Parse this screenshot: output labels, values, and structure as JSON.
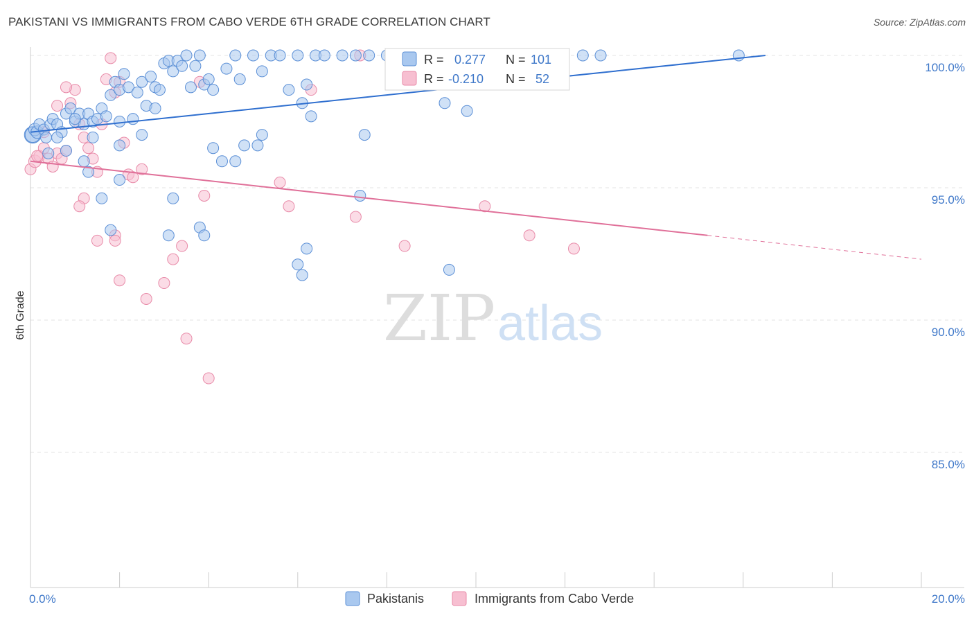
{
  "title": "PAKISTANI VS IMMIGRANTS FROM CABO VERDE 6TH GRADE CORRELATION CHART",
  "source": "Source: ZipAtlas.com",
  "watermark": {
    "zip": "ZIP",
    "atlas": "atlas"
  },
  "colors": {
    "blue_fill": "#a9c8ef",
    "blue_stroke": "#5b8fd6",
    "blue_line": "#2f6fcf",
    "pink_fill": "#f7bfd1",
    "pink_stroke": "#e88aa8",
    "pink_line": "#e07099",
    "tick_text": "#3f78c9",
    "grid": "#e3e3e3"
  },
  "stats": {
    "blue": {
      "r_label": "R =",
      "r_value": "0.277",
      "n_label": "N =",
      "n_value": "101"
    },
    "pink": {
      "r_label": "R =",
      "r_value": "-0.210",
      "n_label": "N =",
      "n_value": "52"
    }
  },
  "chart_data": {
    "type": "scatter",
    "title": "PAKISTANI VS IMMIGRANTS FROM CABO VERDE 6TH GRADE CORRELATION CHART",
    "xlabel": "",
    "ylabel": "6th Grade",
    "xlim": [
      0,
      20
    ],
    "ylim": [
      80.5,
      100.6
    ],
    "x_tick_labels": [
      {
        "value": 0,
        "label": "0.0%"
      },
      {
        "value": 20,
        "label": "20.0%"
      }
    ],
    "y_tick_labels": [
      {
        "value": 100,
        "label": "100.0%"
      },
      {
        "value": 95,
        "label": "95.0%"
      },
      {
        "value": 90,
        "label": "90.0%"
      },
      {
        "value": 85,
        "label": "85.0%"
      }
    ],
    "grid": true,
    "legend_position": "bottom-center",
    "series": [
      {
        "name": "Pakistanis",
        "color": "#5b8fd6",
        "trend": {
          "x": [
            0,
            16.5
          ],
          "y": [
            97.1,
            100.0
          ],
          "dashed_to": null
        },
        "points": [
          [
            0.05,
            97.0,
            12
          ],
          [
            0.05,
            97.0,
            11
          ],
          [
            0.1,
            97.2,
            9
          ],
          [
            0.15,
            97.1,
            9
          ],
          [
            0.2,
            97.4,
            8
          ],
          [
            0.3,
            97.2,
            8
          ],
          [
            0.35,
            96.9,
            8
          ],
          [
            0.45,
            97.4,
            8
          ],
          [
            0.5,
            97.6,
            8
          ],
          [
            0.6,
            97.4,
            8
          ],
          [
            0.7,
            97.1,
            8
          ],
          [
            0.8,
            97.8,
            8
          ],
          [
            0.9,
            98.0,
            8
          ],
          [
            1.0,
            97.5,
            8
          ],
          [
            1.1,
            97.8,
            8
          ],
          [
            1.2,
            97.4,
            8
          ],
          [
            1.3,
            97.8,
            8
          ],
          [
            1.4,
            97.5,
            8
          ],
          [
            1.5,
            97.6,
            8
          ],
          [
            1.6,
            98.0,
            8
          ],
          [
            1.7,
            97.7,
            8
          ],
          [
            1.8,
            98.5,
            8
          ],
          [
            1.9,
            99.0,
            8
          ],
          [
            2.0,
            98.7,
            8
          ],
          [
            2.1,
            99.3,
            8
          ],
          [
            2.2,
            98.8,
            8
          ],
          [
            2.3,
            97.6,
            8
          ],
          [
            2.4,
            98.6,
            8
          ],
          [
            2.5,
            99.0,
            8
          ],
          [
            2.6,
            98.1,
            8
          ],
          [
            2.7,
            99.2,
            8
          ],
          [
            2.8,
            98.8,
            8
          ],
          [
            2.9,
            98.7,
            8
          ],
          [
            3.0,
            99.7,
            8
          ],
          [
            3.1,
            99.8,
            8
          ],
          [
            3.2,
            99.4,
            8
          ],
          [
            3.3,
            99.8,
            8
          ],
          [
            3.4,
            99.6,
            8
          ],
          [
            3.5,
            100.0,
            8
          ],
          [
            3.6,
            98.8,
            8
          ],
          [
            3.7,
            99.6,
            8
          ],
          [
            3.8,
            100.0,
            8
          ],
          [
            3.9,
            98.9,
            8
          ],
          [
            4.0,
            99.1,
            8
          ],
          [
            4.1,
            98.7,
            8
          ],
          [
            4.4,
            99.5,
            8
          ],
          [
            4.6,
            100.0,
            8
          ],
          [
            4.7,
            99.1,
            8
          ],
          [
            5.0,
            100.0,
            8
          ],
          [
            5.2,
            99.4,
            8
          ],
          [
            5.4,
            100.0,
            8
          ],
          [
            5.6,
            100.0,
            8
          ],
          [
            5.8,
            98.7,
            8
          ],
          [
            6.0,
            100.0,
            8
          ],
          [
            6.2,
            98.9,
            8
          ],
          [
            6.4,
            100.0,
            8
          ],
          [
            6.6,
            100.0,
            8
          ],
          [
            7.0,
            100.0,
            8
          ],
          [
            7.3,
            100.0,
            8
          ],
          [
            7.6,
            100.0,
            8
          ],
          [
            8.0,
            100.0,
            8
          ],
          [
            8.5,
            100.0,
            8
          ],
          [
            8.6,
            100.0,
            8
          ],
          [
            8.7,
            100.0,
            8
          ],
          [
            8.8,
            100.0,
            8
          ],
          [
            9.2,
            100.0,
            8
          ],
          [
            9.5,
            100.0,
            8
          ],
          [
            11.3,
            100.0,
            8
          ],
          [
            12.4,
            100.0,
            8
          ],
          [
            12.8,
            100.0,
            8
          ],
          [
            15.9,
            100.0,
            8
          ],
          [
            0.6,
            96.9,
            8
          ],
          [
            0.8,
            96.4,
            8
          ],
          [
            1.2,
            96.0,
            8
          ],
          [
            1.4,
            96.9,
            8
          ],
          [
            2.0,
            97.5,
            8
          ],
          [
            2.5,
            97.0,
            8
          ],
          [
            2.8,
            98.0,
            8
          ],
          [
            4.1,
            96.5,
            8
          ],
          [
            4.3,
            96.0,
            8
          ],
          [
            4.6,
            96.0,
            8
          ],
          [
            4.8,
            96.6,
            8
          ],
          [
            5.1,
            96.6,
            8
          ],
          [
            5.2,
            97.0,
            8
          ],
          [
            6.1,
            98.2,
            8
          ],
          [
            6.3,
            97.7,
            8
          ],
          [
            7.5,
            97.0,
            8
          ],
          [
            9.3,
            98.2,
            8
          ],
          [
            9.8,
            97.9,
            8
          ],
          [
            1.3,
            95.6,
            8
          ],
          [
            1.6,
            94.6,
            8
          ],
          [
            2.0,
            95.3,
            8
          ],
          [
            3.2,
            94.6,
            8
          ],
          [
            3.1,
            93.2,
            8
          ],
          [
            3.8,
            93.5,
            8
          ],
          [
            3.9,
            93.2,
            8
          ],
          [
            1.8,
            93.4,
            8
          ],
          [
            6.2,
            92.7,
            8
          ],
          [
            6.0,
            92.1,
            8
          ],
          [
            6.1,
            91.7,
            8
          ],
          [
            7.4,
            94.7,
            8
          ],
          [
            9.4,
            91.9,
            8
          ],
          [
            2.0,
            96.6,
            8
          ],
          [
            0.4,
            96.3,
            8
          ],
          [
            1.0,
            97.6,
            8
          ]
        ]
      },
      {
        "name": "Immigrants from Cabo Verde",
        "color": "#e88aa8",
        "trend": {
          "x": [
            0,
            15.2
          ],
          "y": [
            96.0,
            93.2
          ],
          "dashed_to": [
            20,
            92.3
          ]
        },
        "points": [
          [
            0.0,
            95.7,
            8
          ],
          [
            0.1,
            96.0,
            9
          ],
          [
            0.2,
            96.2,
            8
          ],
          [
            0.3,
            96.5,
            8
          ],
          [
            0.4,
            96.1,
            8
          ],
          [
            0.5,
            95.8,
            8
          ],
          [
            0.6,
            96.3,
            8
          ],
          [
            0.7,
            96.1,
            8
          ],
          [
            0.8,
            96.4,
            8
          ],
          [
            0.9,
            98.2,
            8
          ],
          [
            1.0,
            98.7,
            8
          ],
          [
            1.1,
            97.4,
            8
          ],
          [
            1.2,
            96.9,
            8
          ],
          [
            1.3,
            96.5,
            8
          ],
          [
            1.4,
            96.1,
            8
          ],
          [
            1.5,
            95.6,
            8
          ],
          [
            1.6,
            97.4,
            8
          ],
          [
            1.7,
            99.1,
            8
          ],
          [
            1.8,
            99.9,
            8
          ],
          [
            1.9,
            98.6,
            8
          ],
          [
            2.0,
            99.0,
            8
          ],
          [
            2.1,
            96.7,
            8
          ],
          [
            2.2,
            95.5,
            8
          ],
          [
            2.3,
            95.4,
            8
          ],
          [
            2.5,
            95.7,
            8
          ],
          [
            0.3,
            97.1,
            8
          ],
          [
            0.8,
            98.8,
            8
          ],
          [
            0.6,
            98.1,
            8
          ],
          [
            1.2,
            94.6,
            8
          ],
          [
            1.1,
            94.3,
            8
          ],
          [
            1.5,
            93.0,
            8
          ],
          [
            1.9,
            93.2,
            8
          ],
          [
            1.9,
            93.0,
            8
          ],
          [
            2.0,
            91.5,
            8
          ],
          [
            2.6,
            90.8,
            8
          ],
          [
            3.0,
            91.4,
            8
          ],
          [
            3.2,
            92.3,
            8
          ],
          [
            3.4,
            92.8,
            8
          ],
          [
            3.5,
            89.3,
            8
          ],
          [
            4.0,
            87.8,
            8
          ],
          [
            3.9,
            94.7,
            8
          ],
          [
            3.8,
            99.0,
            8
          ],
          [
            5.6,
            95.2,
            8
          ],
          [
            5.8,
            94.3,
            8
          ],
          [
            6.3,
            98.7,
            8
          ],
          [
            7.3,
            93.9,
            8
          ],
          [
            7.4,
            100.0,
            8
          ],
          [
            8.4,
            92.8,
            8
          ],
          [
            10.2,
            94.3,
            8
          ],
          [
            11.2,
            93.2,
            8
          ],
          [
            12.2,
            92.7,
            8
          ],
          [
            0.15,
            96.2,
            8
          ]
        ]
      }
    ]
  },
  "legend": {
    "items": [
      {
        "label": "Pakistanis"
      },
      {
        "label": "Immigrants from Cabo Verde"
      }
    ]
  }
}
